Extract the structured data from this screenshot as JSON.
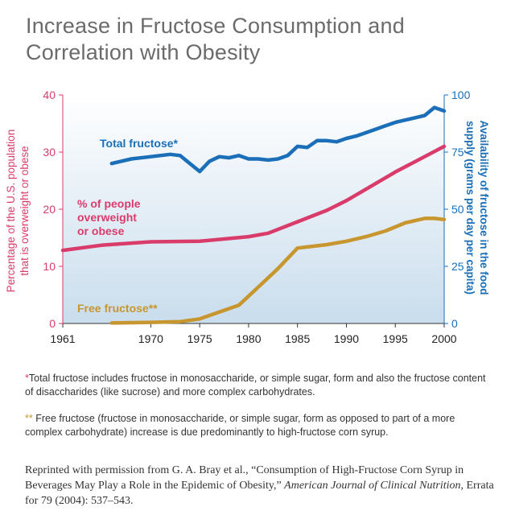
{
  "title": "Increase in Fructose Consumption and Correlation with Obesity",
  "footnotes": [
    {
      "marker": "*",
      "text": "Total fructose includes fructose in monosaccharide, or simple sugar, form and also the fructose content of disaccharides (like sucrose) and more complex carbohydrates."
    },
    {
      "marker": "**",
      "text": " Free fructose (fructose in monosaccharide, or simple sugar, form as opposed to part of a more complex carbohydrate) increase is due predominantly to high-fructose corn syrup."
    }
  ],
  "citation": {
    "prefix": "Reprinted with permission from G. A. Bray et al., “Consumption of High-Fructose Corn Syrup in Beverages May Play a Role in the Epidemic of Obesity,” ",
    "journal": "American Journal of Clinical Nutrition,",
    "suffix": " Errata for 79 (2004): 537–543."
  },
  "colors": {
    "obesity": "#d93c6a",
    "total_fructose": "#1a6fb8",
    "free_fructose": "#c8962e",
    "title": "#6b6b6b",
    "plot_bg_top": "#ffffff",
    "plot_bg_bottom": "#c9dded"
  },
  "chart_data": {
    "type": "line",
    "title": "Increase in Fructose Consumption and Correlation with Obesity",
    "xlabel": "",
    "xlim": [
      1961,
      2000
    ],
    "xticks": [
      "1961",
      "1970",
      "1975",
      "1980",
      "1985",
      "1990",
      "1995",
      "2000"
    ],
    "xtick_values": [
      1961,
      1970,
      1975,
      1980,
      1985,
      1990,
      1995,
      2000
    ],
    "y_left": {
      "label": "Percentage of the U.S. population that is overweight or obese",
      "range": [
        0,
        40
      ],
      "ticks": [
        "0",
        "10",
        "20",
        "30",
        "40"
      ],
      "tick_values": [
        0,
        10,
        20,
        30,
        40
      ]
    },
    "y_right": {
      "label": "Availability of fructose in the food supply (grams per day per capita)",
      "range": [
        0,
        100
      ],
      "ticks": [
        "0",
        "25",
        "50",
        "75",
        "100"
      ],
      "tick_values": [
        0,
        25,
        50,
        75,
        100
      ]
    },
    "series": [
      {
        "name": "Total fructose*",
        "axis": "right",
        "x": [
          1966,
          1968,
          1970,
          1972,
          1973,
          1974,
          1975,
          1976,
          1977,
          1978,
          1979,
          1980,
          1981,
          1982,
          1983,
          1984,
          1985,
          1986,
          1987,
          1988,
          1989,
          1990,
          1991,
          1992,
          1993,
          1994,
          1995,
          1996,
          1997,
          1998,
          1999,
          2000
        ],
        "y": [
          70,
          72,
          73,
          74,
          73.5,
          70,
          66.5,
          71,
          73,
          72.5,
          73.5,
          72,
          72,
          71.5,
          72,
          73.5,
          77.5,
          77,
          80,
          80,
          79.5,
          81,
          82,
          83.5,
          85,
          86.5,
          88,
          89,
          90,
          91,
          94.5,
          93
        ]
      },
      {
        "name": "% of people overweight or obese",
        "axis": "left",
        "x": [
          1961,
          1965,
          1970,
          1975,
          1980,
          1982,
          1985,
          1988,
          1990,
          1995,
          2000
        ],
        "y": [
          12.8,
          13.7,
          14.3,
          14.4,
          15.2,
          15.8,
          17.8,
          19.8,
          21.5,
          26.5,
          31.0
        ]
      },
      {
        "name": "Free fructose**",
        "axis": "right",
        "x": [
          1966,
          1970,
          1973,
          1975,
          1977,
          1979,
          1981,
          1983,
          1984,
          1985,
          1986,
          1988,
          1990,
          1992,
          1994,
          1996,
          1998,
          1999,
          2000
        ],
        "y": [
          0.2,
          0.5,
          0.8,
          2,
          5,
          8,
          16,
          24,
          28.5,
          33,
          33.5,
          34.5,
          36,
          38,
          40.5,
          44,
          46,
          46,
          45.5
        ]
      }
    ],
    "annotations": [
      {
        "text": "Total fructose*",
        "series": "Total fructose*"
      },
      {
        "text": "% of people overweight or obese",
        "lines": [
          "% of people",
          "overweight",
          "or obese"
        ],
        "series": "% of people overweight or obese"
      },
      {
        "text": "Free fructose**",
        "series": "Free fructose**"
      }
    ],
    "grid": false,
    "legend": "none"
  }
}
